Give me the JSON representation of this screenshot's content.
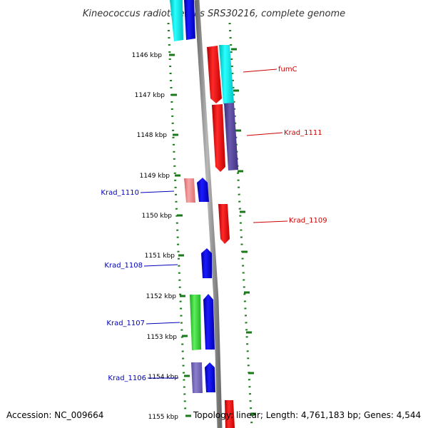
{
  "title": "Kineococcus radiotolerans SRS30216, complete genome",
  "footer": {
    "accession": "Accession: NC_009664",
    "topology": "Topology: linear; Length: 4,761,183 bp; Genes: 4,544"
  },
  "ticks": [
    "1146 kbp",
    "1147 kbp",
    "1148 kbp",
    "1149 kbp",
    "1150 kbp",
    "1151 kbp",
    "1152 kbp",
    "1153 kbp",
    "1154 kbp",
    "1155 kbp"
  ],
  "gene_labels": {
    "fumC": "fumC",
    "krad_1111": "Krad_1111",
    "krad_1110": "Krad_1110",
    "krad_1109": "Krad_1109",
    "krad_1108": "Krad_1108",
    "krad_1107": "Krad_1107",
    "krad_1106": "Krad_1106"
  },
  "colors": {
    "reverse_label": "#cc0000",
    "forward_label": "#0000bb",
    "ring": "#1a7a1a",
    "backbone": "#8a8a8a"
  }
}
